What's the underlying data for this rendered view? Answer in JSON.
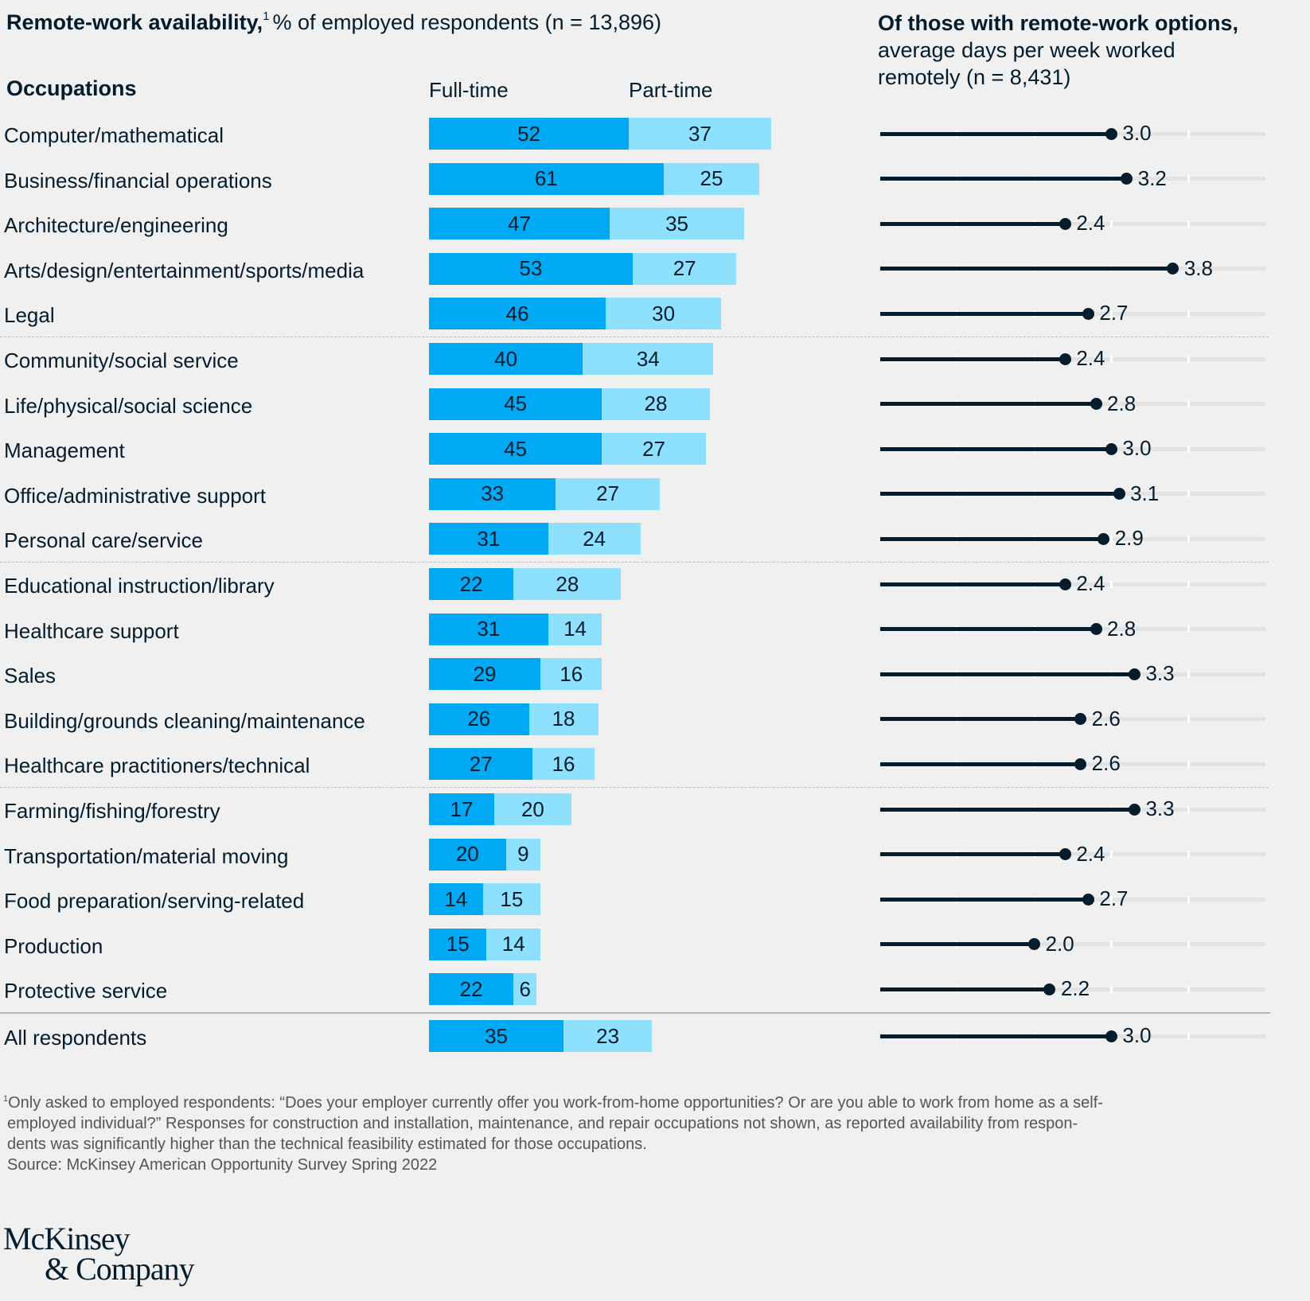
{
  "titles": {
    "left_bold": "Remote-work availability,",
    "left_footnote_mark": "1",
    "left_regular": "% of employed respondents (n = 13,896)",
    "right_bold": "Of those with remote-work options,",
    "right_regular": "average days per week worked remotely (n = 8,431)"
  },
  "columns": {
    "occupations": "Occupations",
    "full_time": "Full-time",
    "part_time": "Part-time"
  },
  "colors": {
    "full_time": "#00a9f4",
    "part_time": "#8ee0ff",
    "dot": "#051c2c"
  },
  "chart_data": [
    {
      "type": "bar",
      "stacked": true,
      "orientation": "horizontal",
      "title": "Remote-work availability, % of employed respondents (n = 13,896)",
      "xlabel": "",
      "ylabel": "Occupations",
      "categories": [
        "Computer/mathematical",
        "Business/financial operations",
        "Architecture/engineering",
        "Arts/design/entertainment/sports/media",
        "Legal",
        "Community/social service",
        "Life/physical/social science",
        "Management",
        "Office/administrative support",
        "Personal care/service",
        "Educational instruction/library",
        "Healthcare support",
        "Sales",
        "Building/grounds cleaning/maintenance",
        "Healthcare practitioners/technical",
        "Farming/fishing/forestry",
        "Transportation/material moving",
        "Food preparation/serving-related",
        "Production",
        "Protective service",
        "All respondents"
      ],
      "series": [
        {
          "name": "Full-time",
          "values": [
            52,
            61,
            47,
            53,
            46,
            40,
            45,
            45,
            33,
            31,
            22,
            31,
            29,
            26,
            27,
            17,
            20,
            14,
            15,
            22,
            35
          ]
        },
        {
          "name": "Part-time",
          "values": [
            37,
            25,
            35,
            27,
            30,
            34,
            28,
            27,
            27,
            24,
            28,
            14,
            16,
            18,
            16,
            20,
            9,
            15,
            14,
            6,
            23
          ]
        }
      ],
      "group_separators_after": [
        4,
        9,
        14
      ],
      "total_separator_after": 19,
      "legend": "column headers at top",
      "xlim": [
        0,
        100
      ]
    },
    {
      "type": "scatter",
      "style": "lollipop",
      "title": "Of those with remote-work options, average days per week worked remotely (n = 8,431)",
      "categories": [
        "Computer/mathematical",
        "Business/financial operations",
        "Architecture/engineering",
        "Arts/design/entertainment/sports/media",
        "Legal",
        "Community/social service",
        "Life/physical/social science",
        "Management",
        "Office/administrative support",
        "Personal care/service",
        "Educational instruction/library",
        "Healthcare support",
        "Sales",
        "Building/grounds cleaning/maintenance",
        "Healthcare practitioners/technical",
        "Farming/fishing/forestry",
        "Transportation/material moving",
        "Food preparation/serving-related",
        "Production",
        "Protective service",
        "All respondents"
      ],
      "values": [
        3.0,
        3.2,
        2.4,
        3.8,
        2.7,
        2.4,
        2.8,
        3.0,
        3.1,
        2.9,
        2.4,
        2.8,
        3.3,
        2.6,
        2.6,
        3.3,
        2.4,
        2.7,
        2.0,
        2.2,
        3.0
      ],
      "value_labels": [
        "3.0",
        "3.2",
        "2.4",
        "3.8",
        "2.7",
        "2.4",
        "2.8",
        "3.0",
        "3.1",
        "2.9",
        "2.4",
        "2.8",
        "3.3",
        "2.6",
        "2.6",
        "3.3",
        "2.4",
        "2.7",
        "2.0",
        "2.2",
        "3.0"
      ],
      "xlim": [
        0,
        5
      ],
      "ticks": [
        1,
        2,
        3,
        4
      ],
      "grid": false
    }
  ],
  "footnote": {
    "mark": "1",
    "lines": [
      "Only asked to employed respondents: “Does your employer currently offer you work-from-home opportunities? Or are you able to work from home as a self-",
      "employed individual?” Responses for construction and installation, maintenance, and repair occupations not shown, as reported availability from respon-",
      "dents was significantly higher than the technical feasibility estimated for those occupations."
    ],
    "source": "Source: McKinsey American Opportunity Survey Spring 2022"
  },
  "logo": {
    "line1": "McKinsey",
    "line2": "& Company"
  }
}
